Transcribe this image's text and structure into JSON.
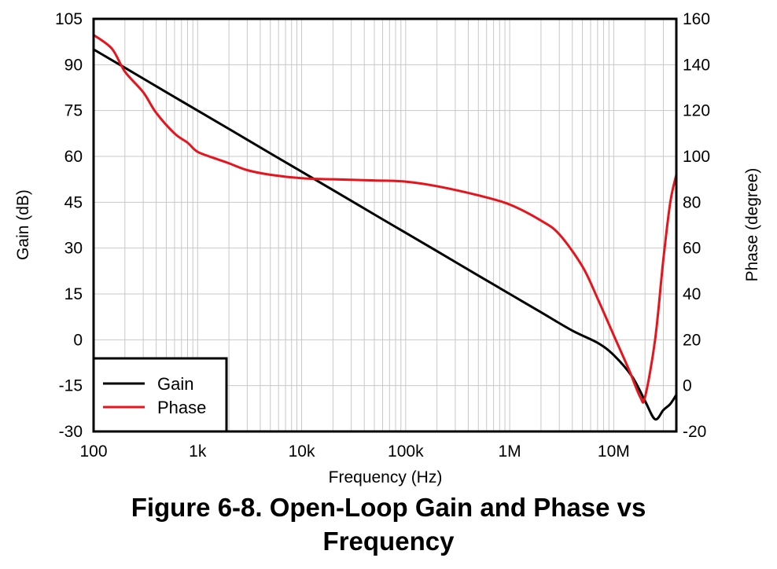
{
  "caption": {
    "line1": "Figure 6-8. Open-Loop Gain and Phase vs",
    "line2": "Frequency"
  },
  "chart_data": {
    "type": "line",
    "title": "Figure 6-8. Open-Loop Gain and Phase vs Frequency",
    "xlabel": "Frequency (Hz)",
    "ylabel": "Gain (dB)",
    "y2label": "Phase (degree)",
    "xscale": "log",
    "xlim": [
      100,
      40000000
    ],
    "ylim": [
      -30,
      105
    ],
    "y2lim": [
      -20,
      160
    ],
    "x_ticks": [
      100,
      1000,
      10000,
      100000,
      1000000,
      10000000
    ],
    "x_tick_labels": [
      "100",
      "1k",
      "10k",
      "100k",
      "1M",
      "10M"
    ],
    "y_ticks": [
      105,
      90,
      75,
      60,
      45,
      30,
      15,
      0,
      -15,
      -30
    ],
    "y_tick_labels": [
      "105",
      "90",
      "75",
      "60",
      "45",
      "30",
      "15",
      "0",
      "-15",
      "-30"
    ],
    "y2_ticks": [
      160,
      140,
      120,
      100,
      80,
      60,
      40,
      20,
      0,
      -20
    ],
    "y2_tick_labels": [
      "160",
      "140",
      "120",
      "100",
      "80",
      "60",
      "40",
      "20",
      "0",
      "-20"
    ],
    "grid": true,
    "legend": "bottom-left",
    "series": [
      {
        "name": "Gain",
        "axis": "left",
        "color": "#000000",
        "x": [
          100,
          200,
          500,
          1000,
          2000,
          5000,
          10000,
          20000,
          50000,
          100000,
          200000,
          500000,
          1000000,
          2000000,
          4000000,
          7000000,
          10000000,
          15000000,
          20000000,
          25000000,
          30000000,
          35000000,
          40000000
        ],
        "y": [
          95,
          89,
          81,
          75,
          69,
          61,
          55,
          49,
          41,
          35,
          29,
          21,
          15,
          9,
          3,
          -1,
          -5,
          -12,
          -20,
          -26,
          -23,
          -21,
          -18
        ]
      },
      {
        "name": "Phase",
        "axis": "right",
        "color": "#e8131b",
        "x": [
          100,
          150,
          200,
          300,
          400,
          600,
          800,
          1000,
          1500,
          2000,
          3000,
          5000,
          10000,
          20000,
          50000,
          100000,
          200000,
          500000,
          1000000,
          2000000,
          3000000,
          5000000,
          7000000,
          10000000,
          14000000,
          18000000,
          20000000,
          25000000,
          30000000,
          35000000,
          40000000
        ],
        "y": [
          153,
          147,
          137,
          128,
          119,
          110,
          106,
          102,
          99,
          97,
          94,
          92,
          90.5,
          90,
          89.5,
          89,
          87,
          83,
          79,
          72,
          66,
          52,
          38,
          22,
          7,
          -5,
          -5,
          20,
          55,
          80,
          92
        ]
      }
    ]
  }
}
